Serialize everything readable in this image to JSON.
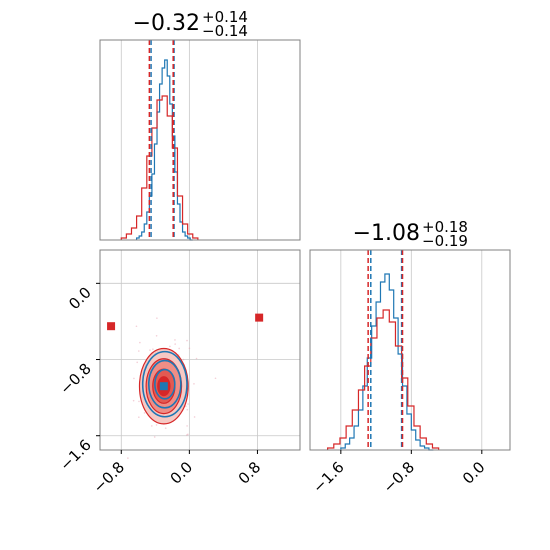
{
  "figure": {
    "panel1_title": {
      "main": "−0.32",
      "sup": "+0.14",
      "sub": "−0.14"
    },
    "panel3_title": {
      "main": "−1.08",
      "sup": "+0.18",
      "sub": "−0.19"
    },
    "colors": {
      "blue": "#1f77b4",
      "red": "#d62728",
      "grid": "#c8c8c8",
      "spine": "#808080"
    }
  },
  "chart_data": [
    {
      "type": "histogram",
      "panel": "marginal-param-1",
      "xlim": [
        -1.05,
        1.3
      ],
      "grid": true,
      "quantiles": {
        "blue": [
          -0.45,
          -0.18
        ],
        "red": [
          -0.47,
          -0.19
        ]
      },
      "series": [
        {
          "color": "blue",
          "bins_x": [
            -0.62,
            -0.59,
            -0.56,
            -0.53,
            -0.5,
            -0.47,
            -0.44,
            -0.41,
            -0.38,
            -0.35,
            -0.32,
            -0.29,
            -0.26,
            -0.23,
            -0.2,
            -0.17,
            -0.14,
            -0.11,
            -0.08,
            -0.05,
            -0.02,
            0.01
          ],
          "bins_y": [
            0.01,
            0.02,
            0.04,
            0.08,
            0.14,
            0.22,
            0.33,
            0.48,
            0.64,
            0.78,
            0.86,
            0.9,
            0.82,
            0.68,
            0.52,
            0.34,
            0.18,
            0.09,
            0.04,
            0.02,
            0.01,
            0.0
          ]
        },
        {
          "color": "red",
          "bins_x": [
            -0.8,
            -0.74,
            -0.68,
            -0.62,
            -0.56,
            -0.5,
            -0.44,
            -0.38,
            -0.32,
            -0.26,
            -0.2,
            -0.14,
            -0.08,
            -0.02,
            0.04
          ],
          "bins_y": [
            0.01,
            0.03,
            0.06,
            0.12,
            0.26,
            0.42,
            0.56,
            0.7,
            0.72,
            0.62,
            0.46,
            0.22,
            0.08,
            0.03,
            0.01
          ]
        }
      ]
    },
    {
      "type": "scatter",
      "panel": "joint-param-1-vs-param-2",
      "xlim": [
        -1.05,
        1.3
      ],
      "ylim": [
        -1.75,
        0.35
      ],
      "grid": true,
      "x_ticks": [
        -0.8,
        0.0,
        0.8
      ],
      "x_tick_labels": [
        "−0.8",
        "0.0",
        "0.8"
      ],
      "y_ticks": [
        0.0,
        -0.8,
        -1.6
      ],
      "y_tick_labels": [
        "0.0",
        "−0.8",
        "−1.6"
      ],
      "markers": [
        {
          "shape": "square",
          "color": "red",
          "x": -0.92,
          "y": -0.45
        },
        {
          "shape": "square",
          "color": "red",
          "x": 0.82,
          "y": -0.36
        },
        {
          "shape": "square",
          "color": "blue",
          "x": -0.3,
          "y": -1.08
        }
      ],
      "contours": {
        "center": [
          -0.3,
          -1.08
        ],
        "sigma_x": 0.13,
        "sigma_y": 0.18
      }
    },
    {
      "type": "histogram",
      "panel": "marginal-param-2",
      "xlim": [
        -1.95,
        0.32
      ],
      "grid": true,
      "x_ticks": [
        -1.6,
        -0.8,
        0.0
      ],
      "x_tick_labels": [
        "−1.6",
        "−0.8",
        "0.0"
      ],
      "quantiles": {
        "blue": [
          -1.26,
          -0.91
        ],
        "red": [
          -1.29,
          -0.9
        ]
      },
      "series": [
        {
          "color": "blue",
          "bins_x": [
            -1.6,
            -1.55,
            -1.5,
            -1.45,
            -1.4,
            -1.35,
            -1.3,
            -1.25,
            -1.2,
            -1.15,
            -1.1,
            -1.05,
            -1.0,
            -0.95,
            -0.9,
            -0.85,
            -0.8,
            -0.75,
            -0.7,
            -0.65,
            -0.6
          ],
          "bins_y": [
            0.01,
            0.03,
            0.06,
            0.12,
            0.2,
            0.32,
            0.46,
            0.62,
            0.74,
            0.84,
            0.88,
            0.8,
            0.66,
            0.48,
            0.32,
            0.18,
            0.1,
            0.05,
            0.02,
            0.01,
            0.0
          ]
        },
        {
          "color": "red",
          "bins_x": [
            -1.75,
            -1.68,
            -1.61,
            -1.54,
            -1.47,
            -1.4,
            -1.33,
            -1.26,
            -1.19,
            -1.12,
            -1.05,
            -0.98,
            -0.91,
            -0.84,
            -0.77,
            -0.7,
            -0.63,
            -0.56
          ],
          "bins_y": [
            0.01,
            0.03,
            0.06,
            0.12,
            0.2,
            0.3,
            0.42,
            0.56,
            0.66,
            0.7,
            0.64,
            0.52,
            0.36,
            0.22,
            0.12,
            0.06,
            0.03,
            0.01
          ]
        }
      ]
    }
  ]
}
